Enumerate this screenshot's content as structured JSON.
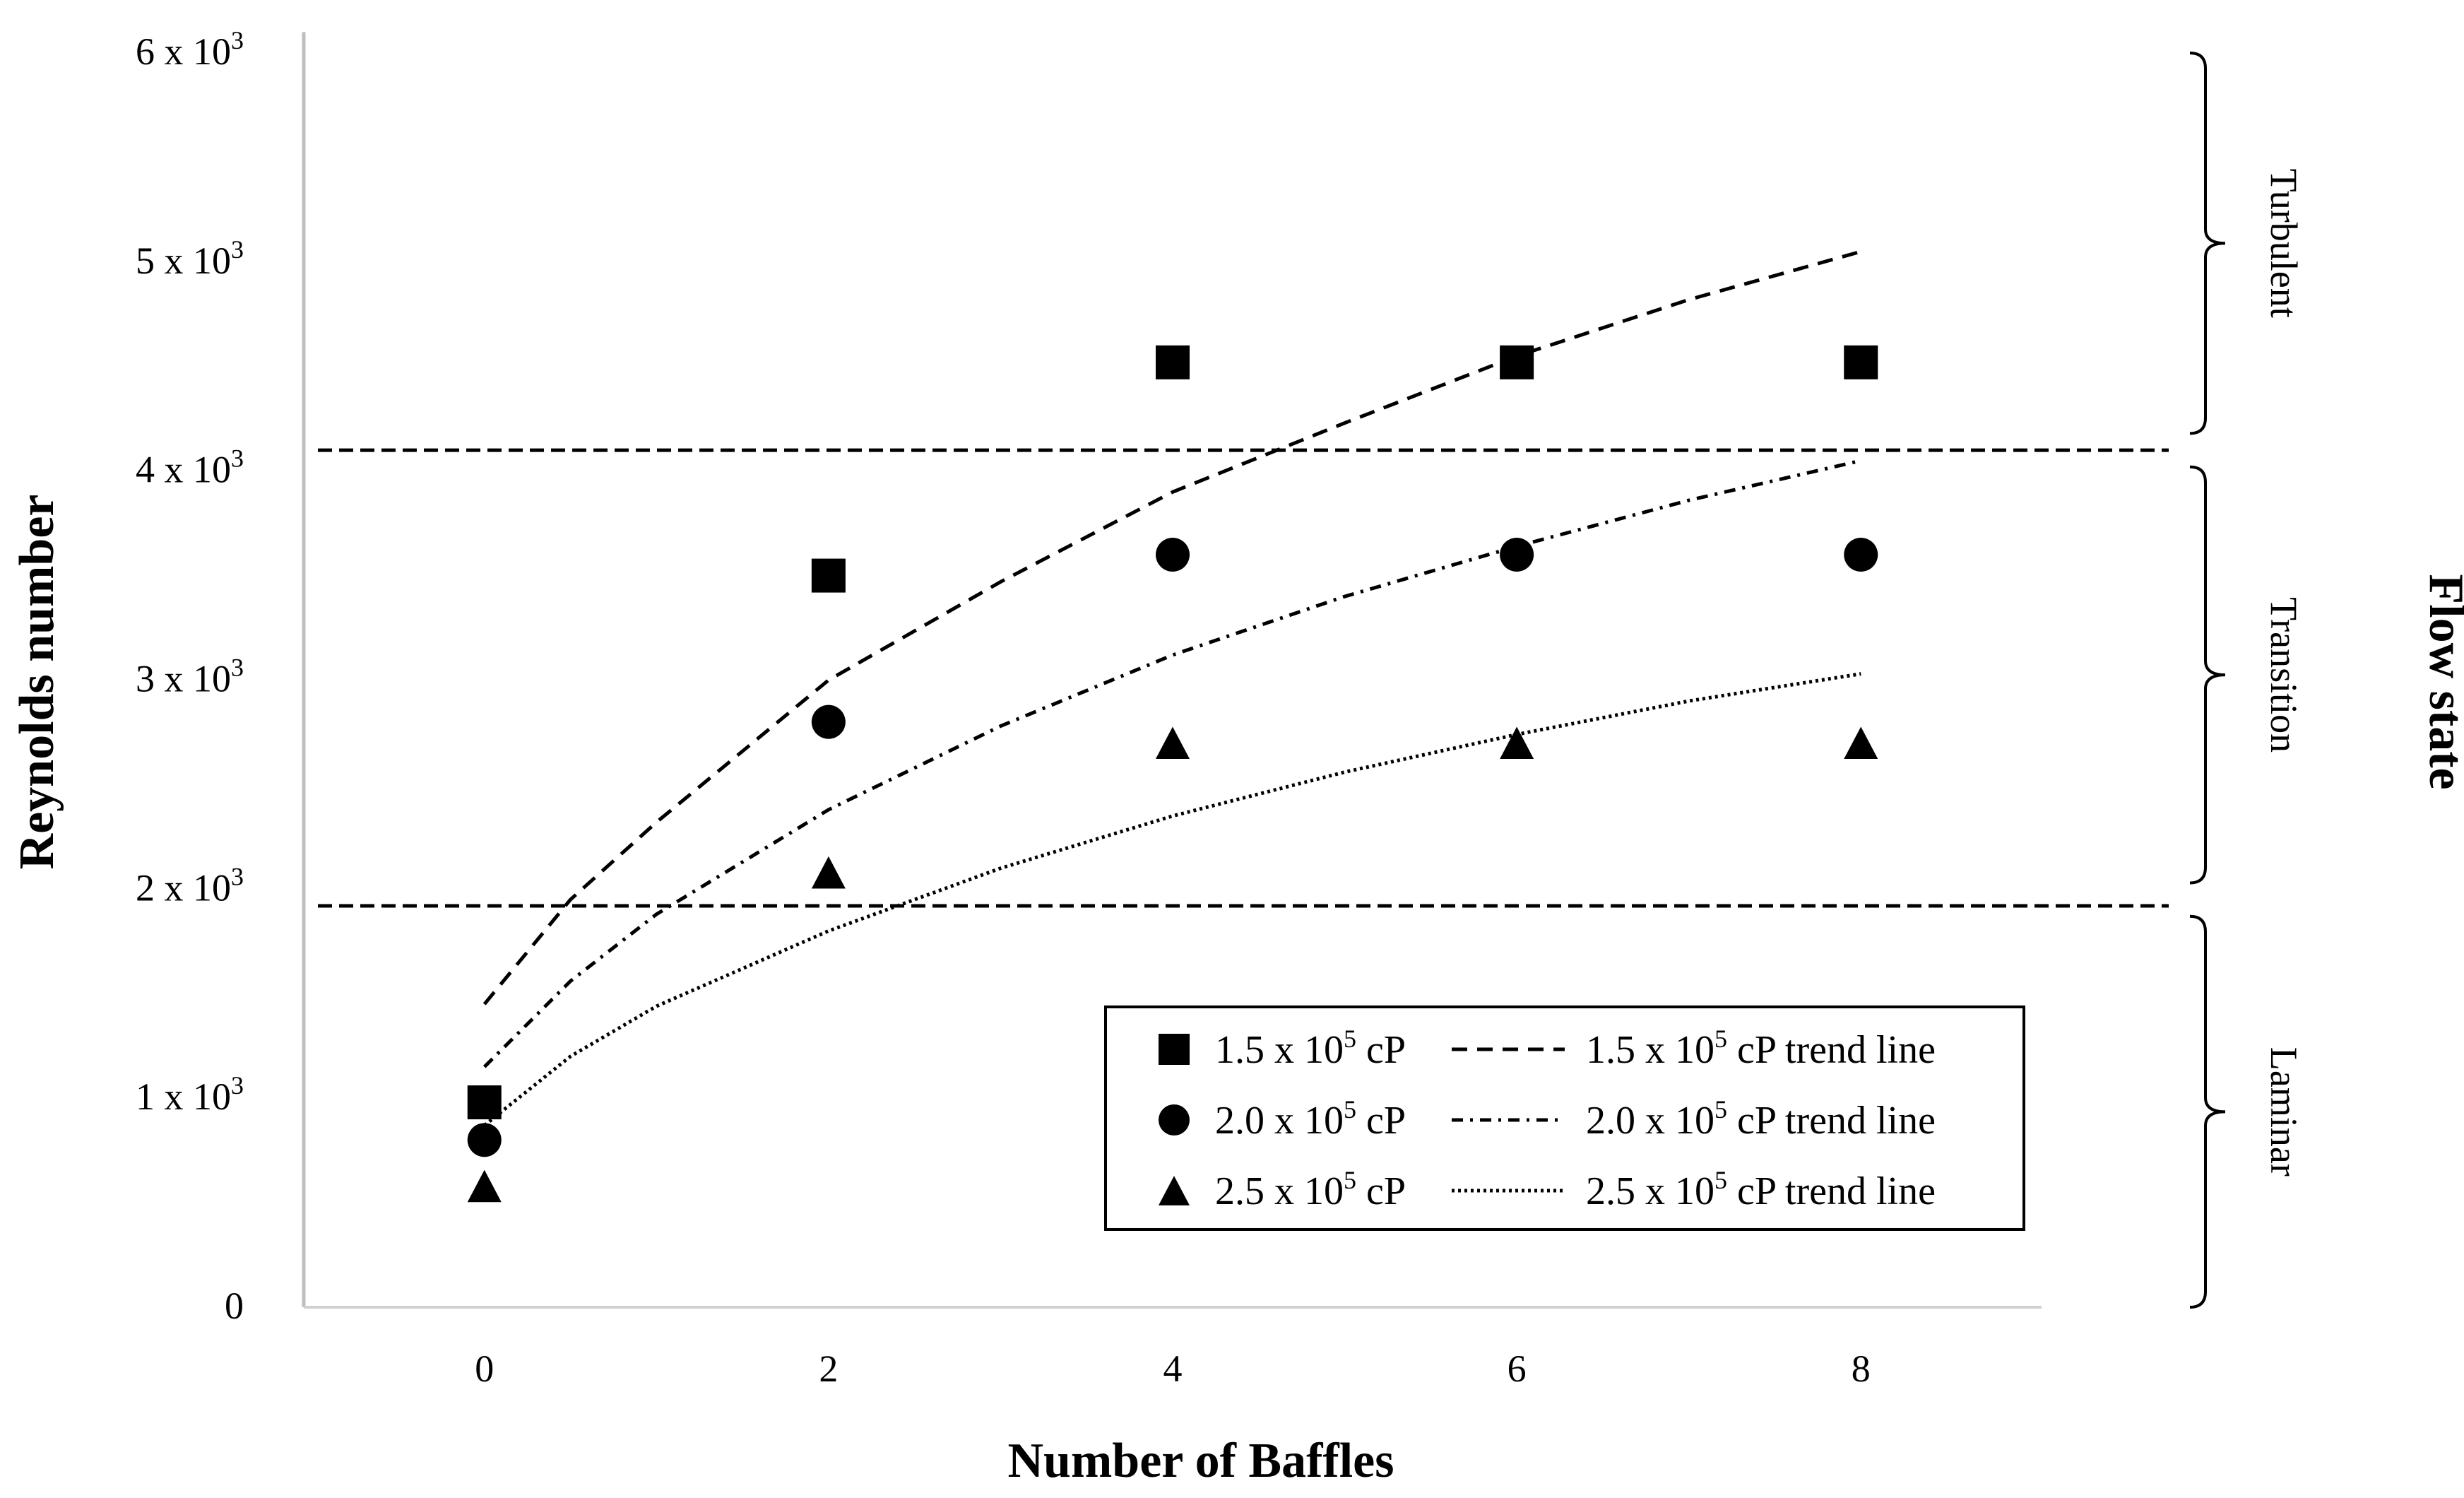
{
  "chart_data": {
    "type": "scatter",
    "title": "",
    "xlabel": "Number of Baffles",
    "ylabel": "Reynolds number",
    "right_label": "Flow state",
    "x_ticks": [
      "0",
      "2",
      "4",
      "6",
      "8"
    ],
    "y_ticks": [
      {
        "value": 0,
        "mantissa": "0",
        "exponent": ""
      },
      {
        "value": 1000,
        "mantissa": "1 x 10",
        "exponent": "3"
      },
      {
        "value": 2000,
        "mantissa": "2 x 10",
        "exponent": "3"
      },
      {
        "value": 3000,
        "mantissa": "3 x 10",
        "exponent": "3"
      },
      {
        "value": 4000,
        "mantissa": "4 x 10",
        "exponent": "3"
      },
      {
        "value": 5000,
        "mantissa": "5 x 10",
        "exponent": "3"
      },
      {
        "value": 6000,
        "mantissa": "6 x 10",
        "exponent": "3"
      }
    ],
    "xlim": [
      -1.05,
      9.05
    ],
    "ylim": [
      0,
      6000
    ],
    "thresholds": [
      1920,
      4100
    ],
    "zones": [
      {
        "label": "Turbulent",
        "from": 4180,
        "to": 6000
      },
      {
        "label": "Transition",
        "from": 2030,
        "to": 4020
      },
      {
        "label": "Laminar",
        "from": 0,
        "to": 1870
      }
    ],
    "series": [
      {
        "name": "1.5 x 10",
        "exp": "5",
        "unit": " cP",
        "trend_label": " cP trend line",
        "marker": "square",
        "dash": "22,14",
        "x": [
          0,
          2,
          4,
          6,
          8
        ],
        "y": [
          980,
          3500,
          4520,
          4520,
          4520
        ],
        "trend": [
          [
            0,
            1450
          ],
          [
            0.5,
            1950
          ],
          [
            1,
            2320
          ],
          [
            2,
            3000
          ],
          [
            3,
            3470
          ],
          [
            4,
            3900
          ],
          [
            5,
            4230
          ],
          [
            6,
            4550
          ],
          [
            7,
            4820
          ],
          [
            8,
            5050
          ]
        ]
      },
      {
        "name": "2.0 x 10",
        "exp": "5",
        "unit": " cP",
        "trend_label": " cP trend line",
        "marker": "circle",
        "dash": "16,10,4,10",
        "x": [
          0,
          2,
          4,
          6,
          8
        ],
        "y": [
          800,
          2800,
          3600,
          3600,
          3600
        ],
        "trend": [
          [
            0,
            1150
          ],
          [
            0.5,
            1560
          ],
          [
            1,
            1880
          ],
          [
            2,
            2380
          ],
          [
            3,
            2780
          ],
          [
            4,
            3120
          ],
          [
            5,
            3400
          ],
          [
            6,
            3640
          ],
          [
            7,
            3860
          ],
          [
            8,
            4050
          ]
        ]
      },
      {
        "name": "2.5 x 10",
        "exp": "5",
        "unit": " cP",
        "trend_label": " cP trend line",
        "marker": "triangle",
        "dash": "4,5",
        "x": [
          0,
          2,
          4,
          6,
          8
        ],
        "y": [
          580,
          2080,
          2700,
          2700,
          2700
        ],
        "trend": [
          [
            0,
            870
          ],
          [
            0.5,
            1200
          ],
          [
            1,
            1440
          ],
          [
            2,
            1800
          ],
          [
            3,
            2100
          ],
          [
            4,
            2350
          ],
          [
            5,
            2560
          ],
          [
            6,
            2740
          ],
          [
            7,
            2900
          ],
          [
            8,
            3030
          ]
        ]
      }
    ]
  }
}
